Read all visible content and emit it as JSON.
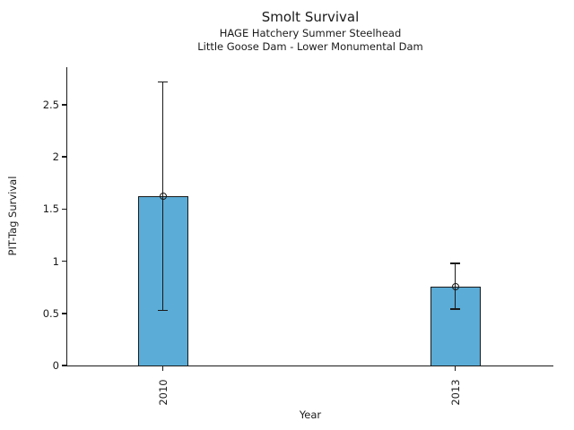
{
  "chart_data": {
    "type": "bar",
    "title": "Smolt Survival",
    "subtitle": [
      "HAGE Hatchery Summer Steelhead",
      "Little Goose Dam - Lower Monumental Dam"
    ],
    "xlabel": "Year",
    "ylabel": "PIT-Tag Survival",
    "categories": [
      "2010",
      "2013"
    ],
    "values": [
      1.62,
      0.76
    ],
    "error_low": [
      0.53,
      0.54
    ],
    "error_high": [
      2.72,
      0.98
    ],
    "yticks": [
      0,
      0.5,
      1,
      1.5,
      2,
      2.5
    ],
    "ytick_labels": [
      "0",
      "0.5",
      "1",
      "1.5",
      "2",
      "2.5"
    ],
    "ylim": [
      0,
      2.86
    ],
    "grid": false,
    "legend": "none",
    "bar_color": "#5bacd6",
    "edge_color": "#1a1a1a"
  }
}
